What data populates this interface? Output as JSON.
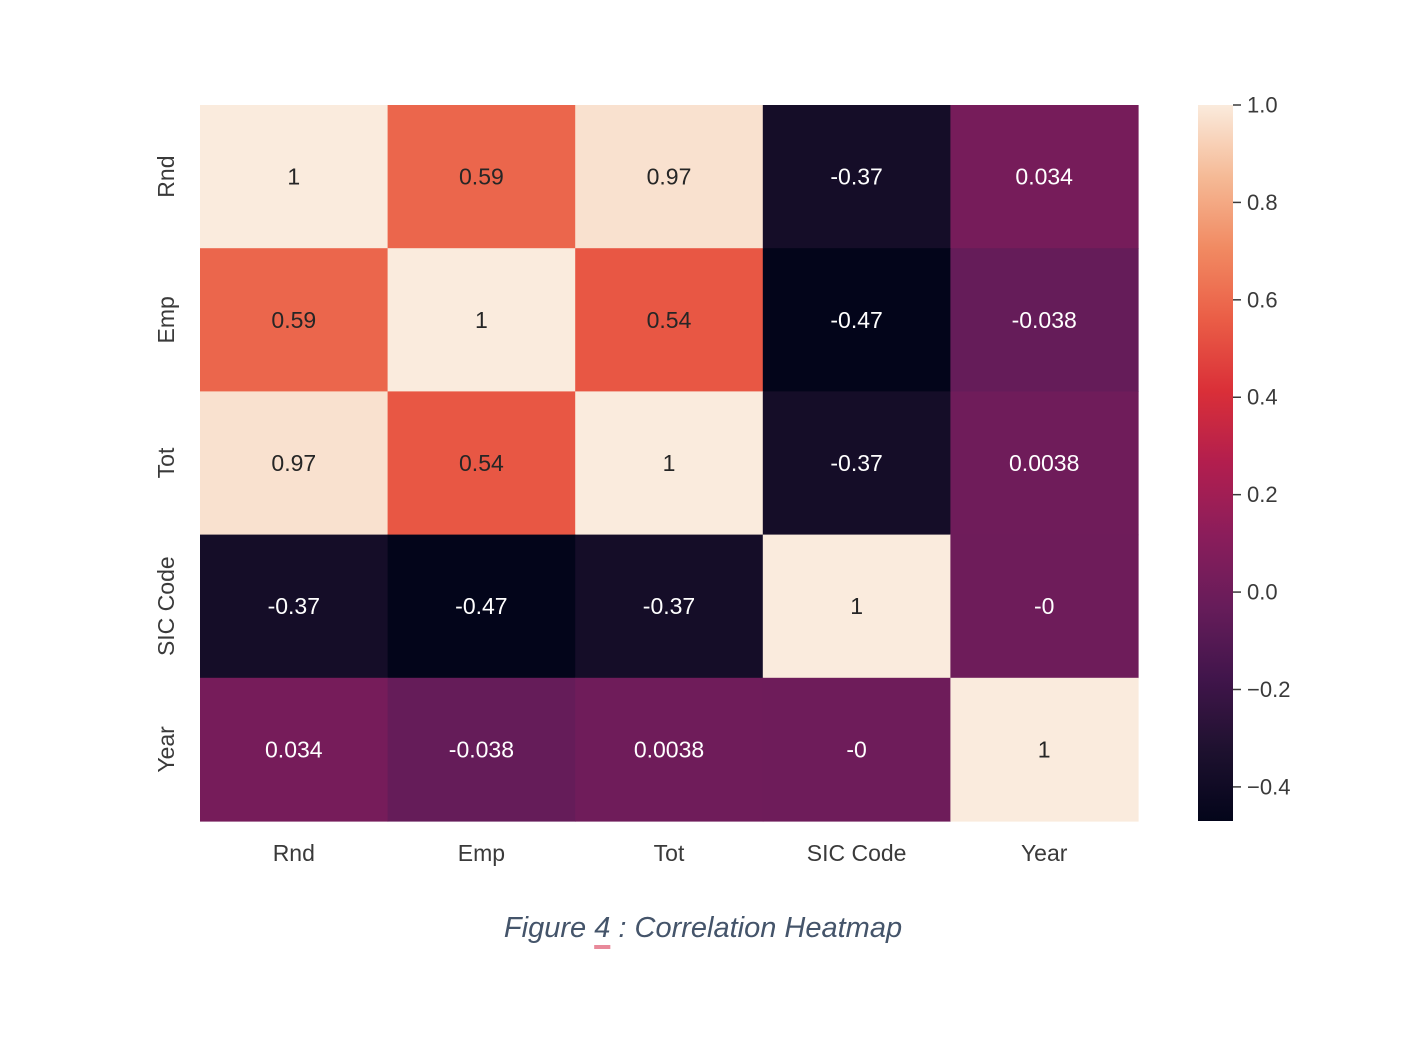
{
  "chart_data": {
    "type": "heatmap",
    "x_labels": [
      "Rnd",
      "Emp",
      "Tot",
      "SIC Code",
      "Year"
    ],
    "y_labels": [
      "Rnd",
      "Emp",
      "Tot",
      "SIC Code",
      "Year"
    ],
    "values": [
      [
        1,
        0.59,
        0.97,
        -0.37,
        0.034
      ],
      [
        0.59,
        1,
        0.54,
        -0.47,
        -0.038
      ],
      [
        0.97,
        0.54,
        1,
        -0.37,
        0.0038
      ],
      [
        -0.37,
        -0.47,
        -0.37,
        1,
        0
      ],
      [
        0.034,
        -0.038,
        0.0038,
        0,
        1
      ]
    ],
    "annotations": [
      [
        "1",
        "0.59",
        "0.97",
        "-0.37",
        "0.034"
      ],
      [
        "0.59",
        "1",
        "0.54",
        "-0.47",
        "-0.038"
      ],
      [
        "0.97",
        "0.54",
        "1",
        "-0.37",
        "0.0038"
      ],
      [
        "-0.37",
        "-0.47",
        "-0.37",
        "1",
        "-0"
      ],
      [
        "0.034",
        "-0.038",
        "0.0038",
        "-0",
        "1"
      ]
    ],
    "colorbar": {
      "vmin": -0.47,
      "vmax": 1.0,
      "ticks": [
        1.0,
        0.8,
        0.6,
        0.4,
        0.2,
        0.0,
        -0.2,
        -0.4
      ],
      "tick_labels": [
        "1.0",
        "0.8",
        "0.6",
        "0.4",
        "0.2",
        "0.0",
        "−0.2",
        "−0.4"
      ],
      "colormap": "rocket"
    }
  },
  "caption": {
    "prefix": "Figure ",
    "number": "4",
    "suffix": " : Correlation Heatmap"
  }
}
